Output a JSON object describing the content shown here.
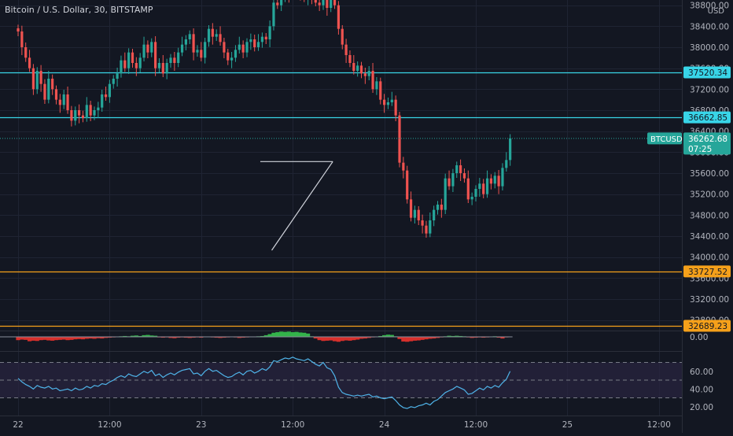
{
  "header": {
    "symbol_title": "Bitcoin / U.S. Dollar, 30, BITSTAMP"
  },
  "currency": "USD",
  "colors": {
    "background": "#131722",
    "grid": "#1f2433",
    "axis_text": "#b2b5be",
    "up": "#26a69a",
    "down": "#ef5350",
    "cyan_level": "#38d5e8",
    "orange_level": "#f5a01a",
    "white_line": "#d1d4dc",
    "rsi_line": "#4fb3e8",
    "rsi_band": "#2a2540",
    "momentum_up": "#33b24a",
    "momentum_down": "#d8302c"
  },
  "price_axis": {
    "min": 32600,
    "max": 38900,
    "ticks": [
      "38800.00",
      "38400.00",
      "38000.00",
      "37600.00",
      "37200.00",
      "36800.00",
      "36400.00",
      "36000.00",
      "35600.00",
      "35200.00",
      "34800.00",
      "34400.00",
      "34000.00",
      "33600.00",
      "33200.00",
      "32800.00"
    ]
  },
  "horizontal_levels": [
    {
      "name": "level-37520",
      "price": 37520.34,
      "label": "37520.34",
      "color": "cyan"
    },
    {
      "name": "level-36662",
      "price": 36662.85,
      "label": "36662.85",
      "color": "cyan"
    },
    {
      "name": "level-33727",
      "price": 33727.52,
      "label": "33727.52",
      "color": "orange"
    },
    {
      "name": "level-32689",
      "price": 32689.23,
      "label": "32689.23",
      "color": "orange"
    }
  ],
  "last_price": {
    "symbol": "BTCUSD",
    "price": 36262.68,
    "label": "36262.68",
    "countdown": "07:25"
  },
  "triangle": {
    "top_line": {
      "start": [
        63.5,
        35820
      ],
      "end": [
        82.5,
        35820
      ]
    },
    "bottom_line": {
      "start": [
        66.5,
        34130
      ],
      "end": [
        82.5,
        35820
      ]
    }
  },
  "momentum_axis": {
    "label": "0.00"
  },
  "rsi_axis": {
    "min": 10,
    "max": 82,
    "ticks": [
      "60.00",
      "40.00",
      "20.00"
    ],
    "upper": 70,
    "middle": 50,
    "lower": 30
  },
  "time_axis": {
    "labels": [
      {
        "index": 0,
        "text": "22"
      },
      {
        "index": 24,
        "text": "12:00"
      },
      {
        "index": 48,
        "text": "23"
      },
      {
        "index": 72,
        "text": "12:00"
      },
      {
        "index": 96,
        "text": "24"
      },
      {
        "index": 120,
        "text": "12:00"
      },
      {
        "index": 144,
        "text": "25"
      },
      {
        "index": 168,
        "text": "12:00"
      }
    ]
  },
  "chart_data": {
    "type": "candlestick",
    "title": "Bitcoin / U.S. Dollar, 30, BITSTAMP",
    "ylabel": "USD",
    "ylim": [
      32600,
      38900
    ],
    "interval_minutes": 30,
    "close": [
      38300,
      38000,
      37800,
      37600,
      37200,
      37550,
      37300,
      37000,
      37400,
      37200,
      37000,
      36900,
      37100,
      36800,
      36600,
      36800,
      36700,
      36650,
      36900,
      36700,
      36800,
      36850,
      37100,
      37050,
      37300,
      37400,
      37500,
      37750,
      37600,
      37900,
      37700,
      37600,
      37800,
      38050,
      37900,
      38100,
      37600,
      37700,
      37500,
      37700,
      37800,
      37700,
      37900,
      38050,
      38150,
      38250,
      37900,
      37950,
      37800,
      38100,
      38350,
      38200,
      38250,
      38100,
      37900,
      37750,
      37800,
      37950,
      38050,
      37900,
      38100,
      38150,
      38000,
      38100,
      38200,
      38150,
      38400,
      38850,
      38800,
      38950,
      39050,
      39000,
      39100,
      39050,
      39000,
      38950,
      39050,
      38900,
      38850,
      38800,
      39000,
      38750,
      38900,
      38800,
      38350,
      38050,
      37850,
      37700,
      37550,
      37650,
      37500,
      37450,
      37550,
      37200,
      37350,
      37000,
      36900,
      36950,
      37000,
      36700,
      35800,
      35650,
      35100,
      34750,
      34900,
      34700,
      34600,
      34450,
      34700,
      34900,
      35000,
      34900,
      35500,
      35350,
      35600,
      35750,
      35600,
      35500,
      35100,
      35150,
      35300,
      35400,
      35200,
      35500,
      35400,
      35550,
      35350,
      35700,
      35850,
      36262.68
    ],
    "rsi": [
      52,
      48,
      45,
      43,
      40,
      44,
      42,
      41,
      43,
      40,
      41,
      38,
      39,
      40,
      38,
      41,
      39,
      40,
      43,
      41,
      44,
      43,
      46,
      45,
      48,
      50,
      53,
      55,
      53,
      57,
      55,
      54,
      57,
      60,
      58,
      61,
      55,
      57,
      53,
      56,
      58,
      56,
      59,
      61,
      62,
      63,
      57,
      58,
      55,
      60,
      63,
      60,
      61,
      58,
      55,
      53,
      54,
      57,
      59,
      56,
      60,
      61,
      58,
      60,
      63,
      61,
      65,
      72,
      71,
      73,
      75,
      74,
      76,
      74,
      73,
      72,
      74,
      71,
      68,
      66,
      70,
      64,
      62,
      55,
      42,
      36,
      34,
      33,
      32,
      33,
      32,
      33,
      34,
      31,
      32,
      30,
      29,
      30,
      31,
      27,
      22,
      19,
      18,
      20,
      19,
      21,
      22,
      24,
      22,
      26,
      28,
      32,
      36,
      38,
      40,
      43,
      41,
      39,
      34,
      35,
      38,
      41,
      39,
      43,
      41,
      44,
      42,
      47,
      51,
      60
    ],
    "momentum": [
      -0.6,
      -0.5,
      -0.55,
      -0.8,
      -0.7,
      -0.75,
      -0.6,
      -0.55,
      -0.65,
      -0.7,
      -0.6,
      -0.55,
      -0.5,
      -0.6,
      -0.55,
      -0.45,
      -0.4,
      -0.45,
      -0.35,
      -0.3,
      -0.35,
      -0.25,
      -0.3,
      -0.2,
      -0.15,
      -0.1,
      -0.05,
      0.1,
      0.15,
      0.1,
      0.2,
      0.25,
      0.15,
      0.3,
      0.35,
      0.25,
      0.2,
      -0.1,
      -0.15,
      -0.1,
      -0.2,
      -0.25,
      -0.15,
      -0.1,
      -0.15,
      -0.2,
      -0.15,
      -0.1,
      -0.15,
      0.05,
      -0.05,
      -0.1,
      -0.15,
      -0.2,
      -0.15,
      -0.1,
      -0.05,
      -0.1,
      -0.2,
      -0.15,
      -0.1,
      -0.05,
      0.05,
      0.1,
      0.15,
      0.3,
      0.5,
      0.75,
      0.85,
      0.95,
      0.9,
      0.95,
      0.85,
      0.9,
      0.8,
      0.75,
      0.6,
      0.1,
      -0.3,
      -0.6,
      -0.75,
      -0.7,
      -0.65,
      -0.8,
      -0.9,
      -0.75,
      -0.65,
      -0.7,
      -0.6,
      -0.5,
      -0.35,
      -0.3,
      -0.2,
      -0.1,
      0.05,
      0.15,
      0.3,
      0.4,
      0.35,
      0.1,
      -0.4,
      -0.85,
      -0.9,
      -0.8,
      -0.7,
      -0.65,
      -0.55,
      -0.45,
      -0.35,
      -0.3,
      -0.2,
      -0.1,
      0.1,
      0.2,
      0.15,
      0.2,
      0.15,
      0.1,
      -0.1,
      -0.2,
      -0.15,
      -0.1,
      -0.15,
      -0.1,
      0.05,
      0.1,
      -0.15,
      -0.3,
      -0.1,
      0.05
    ]
  }
}
